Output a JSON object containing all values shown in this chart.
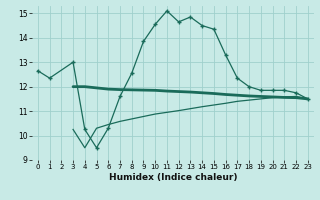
{
  "xlabel": "Humidex (Indice chaleur)",
  "background_color": "#c8eae6",
  "grid_color": "#a0d0cc",
  "line_color": "#1a6b5a",
  "xlim": [
    -0.5,
    23.5
  ],
  "ylim": [
    9,
    15.3
  ],
  "yticks": [
    9,
    10,
    11,
    12,
    13,
    14,
    15
  ],
  "xticks": [
    0,
    1,
    2,
    3,
    4,
    5,
    6,
    7,
    8,
    9,
    10,
    11,
    12,
    13,
    14,
    15,
    16,
    17,
    18,
    19,
    20,
    21,
    22,
    23
  ],
  "line_main_x": [
    0,
    1,
    3,
    4,
    5,
    6,
    7,
    8,
    9,
    10,
    11,
    12,
    13,
    14,
    15,
    16,
    17,
    18,
    19,
    20,
    21,
    22,
    23
  ],
  "line_main_y": [
    12.65,
    12.35,
    13.0,
    10.25,
    9.5,
    10.3,
    11.6,
    12.55,
    13.85,
    14.55,
    15.1,
    14.65,
    14.85,
    14.5,
    14.35,
    13.3,
    12.35,
    12.0,
    11.85,
    11.85,
    11.85,
    11.75,
    11.5
  ],
  "line_flat_x": [
    3,
    4,
    5,
    6,
    7,
    8,
    9,
    10,
    11,
    12,
    13,
    14,
    15,
    16,
    17,
    18,
    19,
    20,
    21,
    22,
    23
  ],
  "line_flat_y": [
    12.0,
    12.0,
    11.95,
    11.9,
    11.88,
    11.87,
    11.86,
    11.85,
    11.82,
    11.8,
    11.78,
    11.75,
    11.72,
    11.68,
    11.65,
    11.62,
    11.6,
    11.58,
    11.56,
    11.55,
    11.5
  ],
  "line_lower_x": [
    3,
    4,
    5,
    6,
    7,
    8,
    9,
    10,
    11,
    12,
    13,
    14,
    15,
    16,
    17,
    18,
    19,
    20,
    21,
    22,
    23
  ],
  "line_lower_y": [
    10.25,
    9.5,
    10.3,
    10.45,
    10.58,
    10.68,
    10.78,
    10.88,
    10.95,
    11.02,
    11.1,
    11.18,
    11.25,
    11.32,
    11.4,
    11.45,
    11.5,
    11.55,
    11.58,
    11.6,
    11.5
  ]
}
